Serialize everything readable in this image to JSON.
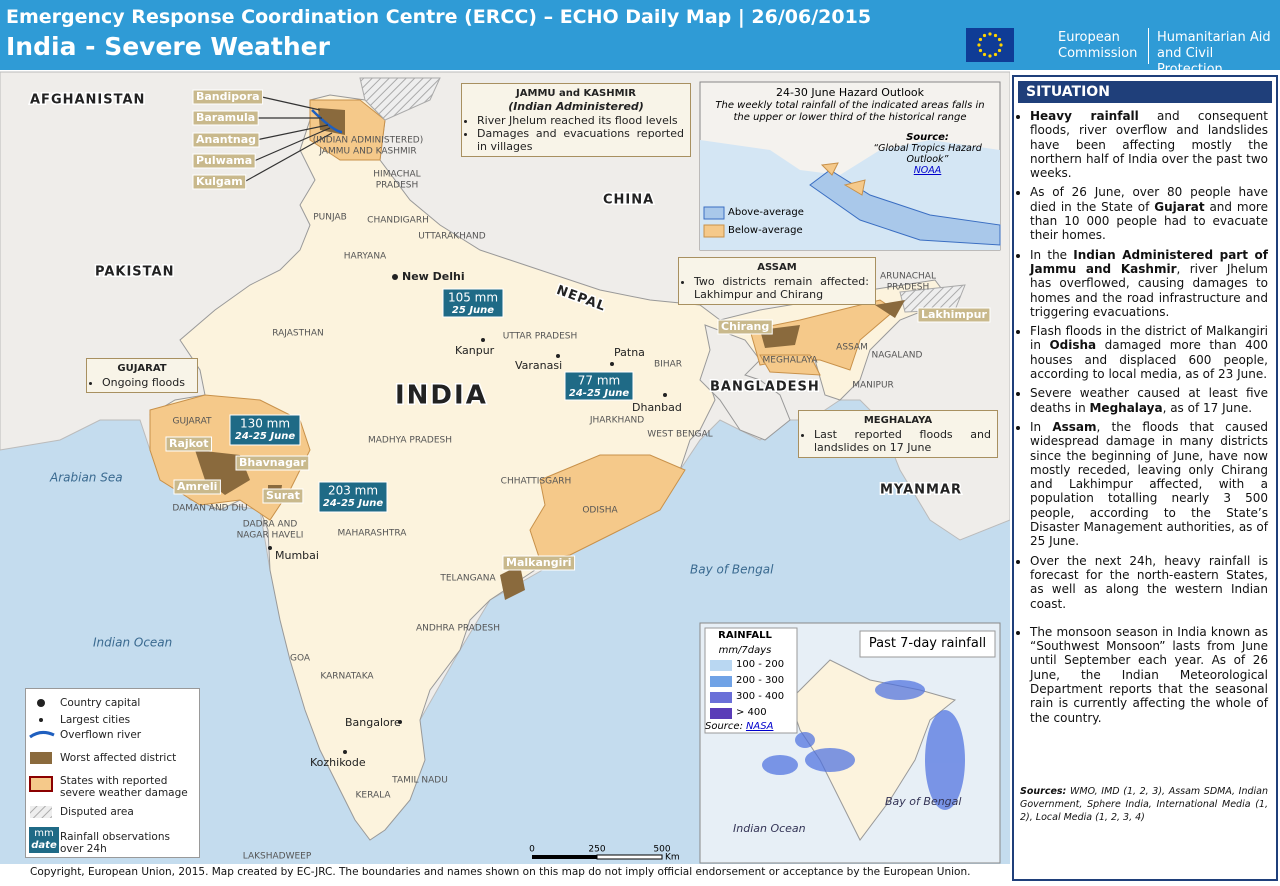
{
  "header": {
    "title": "Emergency Response Coordination Centre (ERCC) – ECHO Daily Map | 26/06/2015",
    "subtitle": "India - Severe Weather",
    "logo": {
      "org": [
        "European",
        "Commission"
      ],
      "dg": [
        "Humanitarian Aid",
        "and Civil Protection"
      ]
    }
  },
  "map": {
    "countries": [
      "AFGHANISTAN",
      "PAKISTAN",
      "CHINA",
      "NEPAL",
      "BANGLADESH",
      "MYANMAR"
    ],
    "country_main": "INDIA",
    "seas": [
      "Arabian Sea",
      "Indian Ocean",
      "Bay of Bengal"
    ],
    "states": [
      [
        "HIMACHAL",
        "PRADESH"
      ],
      "PUNJAB",
      "CHANDIGARH",
      "UTTARAKHAND",
      "HARYANA",
      "RAJASTHAN",
      "UTTAR PRADESH",
      "BIHAR",
      "GUJARAT",
      "MADHYA PRADESH",
      "JHARKHAND",
      "WEST BENGAL",
      "CHHATTISGARH",
      "ODISHA",
      "DAMAN AND DIU",
      [
        "DADRA AND",
        "NAGAR HAVELI"
      ],
      "MAHARASHTRA",
      "TELANGANA",
      "ANDHRA PRADESH",
      "GOA",
      "KARNATAKA",
      "TAMIL NADU",
      "KERALA",
      "LAKSHADWEEP",
      "ASSAM",
      "MEGHALAYA",
      "NAGALAND",
      "MANIPUR",
      [
        "ARUNACHAL",
        "PRADESH"
      ],
      [
        "(INDIAN ADMINISTERED)",
        "JAMMU AND KASHMIR"
      ]
    ],
    "cities": [
      "New Delhi",
      "Kanpur",
      "Varanasi",
      "Patna",
      "Dhanbad",
      "Mumbai",
      "Bangalore",
      "Kozhikode"
    ],
    "districts": [
      "Bandipora",
      "Baramula",
      "Anantnag",
      "Pulwama",
      "Kulgam",
      "Chirang",
      "Lakhimpur",
      "Rajkot",
      "Bhavnagar",
      "Amreli",
      "Surat",
      "Malkangiri"
    ],
    "rainfall_observations": [
      {
        "amount": "105 mm",
        "date": "25 June"
      },
      {
        "amount": "77 mm",
        "date": "24-25 June"
      },
      {
        "amount": "130 mm",
        "date": "24-25 June"
      },
      {
        "amount": "203 mm",
        "date": "24-25 June"
      }
    ],
    "callouts": [
      {
        "title": "JAMMU and KASHMIR",
        "subtitle": "(Indian Administered)",
        "items": [
          "River Jhelum reached its flood levels",
          "Damages and evacuations reported in villages"
        ]
      },
      {
        "title": "ASSAM",
        "items": [
          "Two districts remain affected: Lakhimpur and Chirang"
        ]
      },
      {
        "title": "GUJARAT",
        "items": [
          "Ongoing floods"
        ]
      },
      {
        "title": "MEGHALAYA",
        "items": [
          "Last reported floods and landslides on 17 June"
        ]
      }
    ],
    "scale": {
      "ticks": [
        0,
        250,
        500
      ],
      "unit": "Km"
    }
  },
  "hazard_outlook": {
    "title": "24-30 June Hazard Outlook",
    "note": "The weekly total rainfall of the indicated areas falls in the upper or lower third of the historical range",
    "source_label": "Source:",
    "source": "“Global Tropics Hazard Outlook”",
    "link": "NOAA",
    "legend": [
      "Above-average",
      "Below-average"
    ]
  },
  "rainfall_inset": {
    "title": "Past 7-day rainfall",
    "legend_title": "RAINFALL",
    "unit": "mm/7days",
    "classes": [
      "100 - 200",
      "200 - 300",
      "300 - 400",
      "> 400"
    ],
    "source_label": "Source:",
    "link": "NASA",
    "labels": [
      "Bay of Bengal",
      "Indian Ocean"
    ]
  },
  "legend": {
    "items": [
      "Country capital",
      "Largest cities",
      "Overflown river",
      "Worst affected district",
      "States with reported severe weather damage",
      "Disputed area",
      "Rainfall observations over 24h"
    ],
    "symbol": {
      "amount": "mm",
      "date": "date"
    }
  },
  "situation": {
    "heading": "SITUATION",
    "bullets": [
      [
        {
          "bold": "Heavy rainfall"
        },
        " and consequent floods, river overflow and landslides have been affecting mostly the northern half of India over the past two weeks."
      ],
      [
        "As of 26 June, over 80 people have died in the State of ",
        {
          "bold": "Gujarat"
        },
        " and more than 10 000 people had to evacuate their homes."
      ],
      [
        "In the ",
        {
          "bold": "Indian Administered part of Jammu and Kashmir"
        },
        ", river Jhelum has overflowed, causing damages to homes and the road infrastructure and triggering evacuations."
      ],
      [
        "Flash floods in the district of Malkangiri in ",
        {
          "bold": "Odisha"
        },
        " damaged more than 400 houses and displaced 600 people, according to local media, as of 23 June."
      ],
      [
        "Severe weather caused at least five deaths in ",
        {
          "bold": "Meghalaya"
        },
        ", as of 17 June."
      ],
      [
        "In ",
        {
          "bold": "Assam"
        },
        ", the floods that caused widespread damage in many districts since the beginning of June, have now mostly receded, leaving only Chirang and Lakhimpur affected, with a population totalling nearly 3 500 people, according to the State’s Disaster Management authorities, as of 25 June."
      ],
      [
        "Over the next 24h, heavy rainfall is forecast for the north-eastern States, as well as along the western Indian coast."
      ],
      [
        "The monsoon season in India known as “Southwest Monsoon” lasts from June until September each year. As of 26 June, the Indian Meteorological Department reports that the seasonal rain is currently affecting the whole of the country."
      ]
    ],
    "sources": {
      "label": "Sources:",
      "text": "WMO, IMD (1, 2, 3), Assam SDMA, Indian Government, Sphere India, International Media (1, 2), Local Media (1, 2, 3, 4)"
    }
  },
  "footer": "Copyright, European Union, 2015. Map created by EC-JRC. The boundaries and names shown on this map do not imply official endorsement or acceptance by the European Union."
}
